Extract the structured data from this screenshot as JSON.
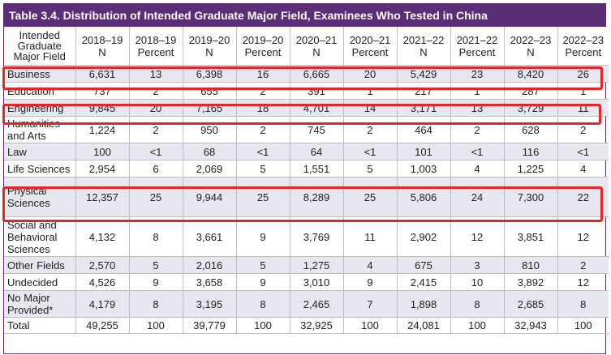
{
  "title": "Table 3.4. Distribution of Intended Graduate Major Field, Examinees Who Tested in China",
  "headers": [
    "Intended Graduate Major Field",
    "2018–19 N",
    "2018–19 Percent",
    "2019–20 N",
    "2019–20 Percent",
    "2020–21 N",
    "2020–21 Percent",
    "2021–22 N",
    "2021–22 Percent",
    "2022–23 N",
    "2022–23 Percent"
  ],
  "rows": [
    {
      "field": "Business",
      "values": [
        "6,631",
        "13",
        "6,398",
        "16",
        "6,665",
        "20",
        "5,429",
        "23",
        "8,420",
        "26"
      ],
      "highlighted": true
    },
    {
      "field": "Education",
      "values": [
        "737",
        "2",
        "655",
        "2",
        "391",
        "1",
        "217",
        "1",
        "287",
        "1"
      ],
      "highlighted": false
    },
    {
      "field": "Engineering",
      "values": [
        "9,845",
        "20",
        "7,165",
        "18",
        "4,701",
        "14",
        "3,171",
        "13",
        "3,729",
        "11"
      ],
      "highlighted": true
    },
    {
      "field": "Humanities and Arts",
      "values": [
        "1,224",
        "2",
        "950",
        "2",
        "745",
        "2",
        "464",
        "2",
        "628",
        "2"
      ],
      "highlighted": false
    },
    {
      "field": "Law",
      "values": [
        "100",
        "<1",
        "68",
        "<1",
        "64",
        "<1",
        "101",
        "<1",
        "116",
        "<1"
      ],
      "highlighted": false
    },
    {
      "field": "Life Sciences",
      "values": [
        "2,954",
        "6",
        "2,069",
        "5",
        "1,551",
        "5",
        "1,003",
        "4",
        "1,225",
        "4"
      ],
      "highlighted": false
    },
    {
      "field": "Physical Sciences",
      "values": [
        "12,357",
        "25",
        "9,944",
        "25",
        "8,289",
        "25",
        "5,806",
        "24",
        "7,300",
        "22"
      ],
      "highlighted": true
    },
    {
      "field": "Social and Behavioral Sciences",
      "values": [
        "4,132",
        "8",
        "3,661",
        "9",
        "3,769",
        "11",
        "2,902",
        "12",
        "3,851",
        "12"
      ],
      "highlighted": false
    },
    {
      "field": "Other Fields",
      "values": [
        "2,570",
        "5",
        "2,016",
        "5",
        "1,275",
        "4",
        "675",
        "3",
        "810",
        "2"
      ],
      "highlighted": false
    },
    {
      "field": "Undecided",
      "values": [
        "4,526",
        "9",
        "3,658",
        "9",
        "3,010",
        "9",
        "2,415",
        "10",
        "3,892",
        "12"
      ],
      "highlighted": false
    },
    {
      "field": "No Major Provided*",
      "values": [
        "4,179",
        "8",
        "3,195",
        "8",
        "2,465",
        "7",
        "1,898",
        "8",
        "2,685",
        "8"
      ],
      "highlighted": false
    },
    {
      "field": "Total",
      "values": [
        "49,255",
        "100",
        "39,779",
        "100",
        "32,925",
        "100",
        "24,081",
        "100",
        "32,943",
        "100"
      ],
      "highlighted": false
    }
  ]
}
